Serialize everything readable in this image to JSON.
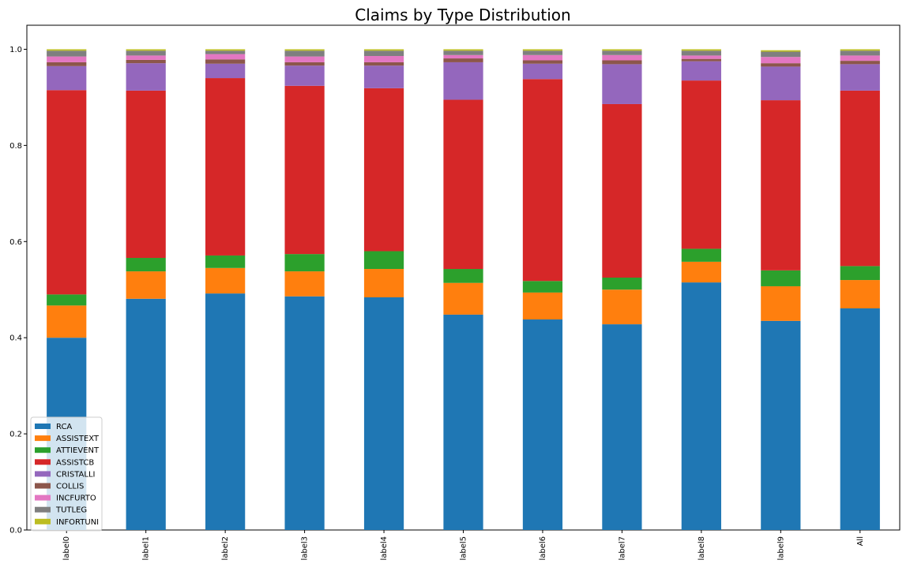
{
  "chart_data": {
    "type": "bar",
    "stacked": true,
    "title": "Claims by Type Distribution",
    "xlabel": "",
    "ylabel": "",
    "ylim": [
      0,
      1.05
    ],
    "yticks": [
      "0.0",
      "0.2",
      "0.4",
      "0.6",
      "0.8",
      "1.0"
    ],
    "grid": false,
    "legend_position": "bottom-left",
    "categories": [
      "label0",
      "label1",
      "label2",
      "label3",
      "label4",
      "label5",
      "label6",
      "label7",
      "label8",
      "label9",
      "All"
    ],
    "series": [
      {
        "name": "RCA",
        "color": "#1f77b4",
        "values": [
          0.4,
          0.481,
          0.492,
          0.486,
          0.484,
          0.448,
          0.438,
          0.428,
          0.515,
          0.435,
          0.461
        ]
      },
      {
        "name": "ASSISTEXT",
        "color": "#ff7f0e",
        "values": [
          0.067,
          0.057,
          0.053,
          0.052,
          0.059,
          0.066,
          0.056,
          0.072,
          0.043,
          0.072,
          0.059
        ]
      },
      {
        "name": "ATTIEVENT",
        "color": "#2ca02c",
        "values": [
          0.023,
          0.028,
          0.026,
          0.036,
          0.037,
          0.029,
          0.024,
          0.025,
          0.027,
          0.033,
          0.029
        ]
      },
      {
        "name": "ASSISTCB",
        "color": "#d62728",
        "values": [
          0.425,
          0.348,
          0.369,
          0.35,
          0.339,
          0.352,
          0.42,
          0.361,
          0.35,
          0.354,
          0.365
        ]
      },
      {
        "name": "CRISTALLI",
        "color": "#9467bd",
        "values": [
          0.05,
          0.057,
          0.03,
          0.042,
          0.047,
          0.078,
          0.032,
          0.083,
          0.04,
          0.07,
          0.055
        ]
      },
      {
        "name": "COLLIS",
        "color": "#8c564b",
        "values": [
          0.008,
          0.007,
          0.009,
          0.007,
          0.007,
          0.008,
          0.007,
          0.008,
          0.005,
          0.007,
          0.007
        ]
      },
      {
        "name": "INCFURTO",
        "color": "#e377c2",
        "values": [
          0.012,
          0.009,
          0.011,
          0.012,
          0.013,
          0.007,
          0.011,
          0.011,
          0.007,
          0.013,
          0.011
        ]
      },
      {
        "name": "TUTLEG",
        "color": "#7f7f7f",
        "values": [
          0.012,
          0.01,
          0.007,
          0.012,
          0.011,
          0.009,
          0.009,
          0.009,
          0.01,
          0.011,
          0.01
        ]
      },
      {
        "name": "INFORTUNI",
        "color": "#bcbd22",
        "values": [
          0.003,
          0.003,
          0.003,
          0.003,
          0.003,
          0.003,
          0.003,
          0.003,
          0.003,
          0.003,
          0.003
        ]
      }
    ]
  }
}
